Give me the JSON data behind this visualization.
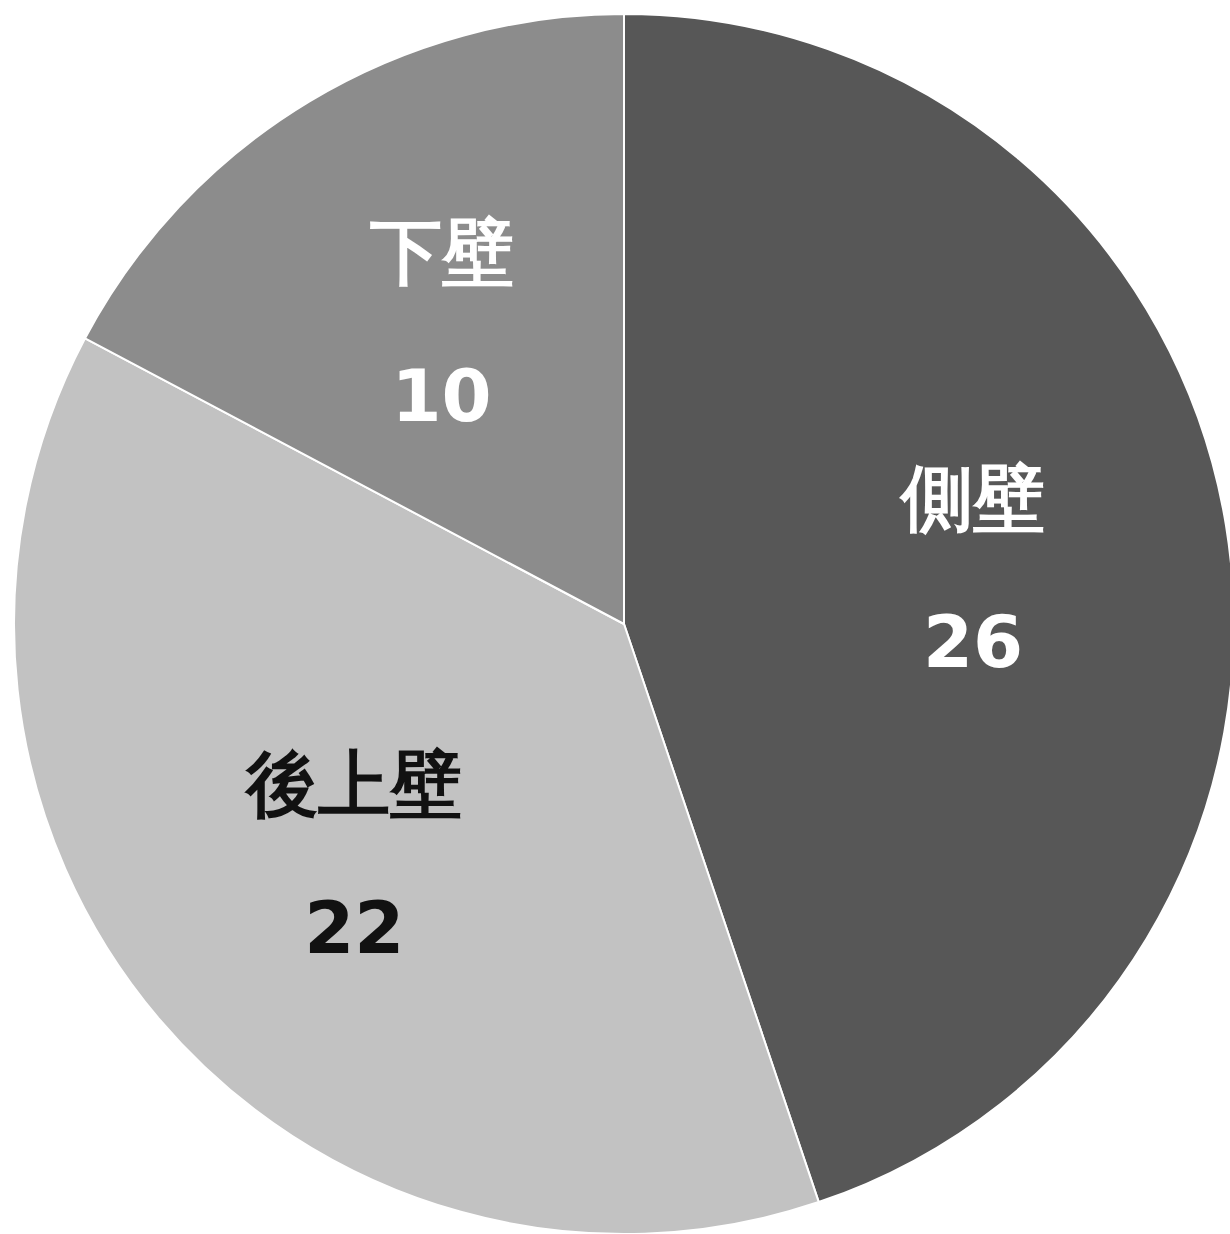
{
  "chart_data": {
    "type": "pie",
    "categories": [
      "側壁",
      "後上壁",
      "下壁"
    ],
    "values": [
      26,
      22,
      10
    ],
    "colors": [
      "#575757",
      "#c2c2c2",
      "#8c8c8c"
    ],
    "data_labels": true
  }
}
